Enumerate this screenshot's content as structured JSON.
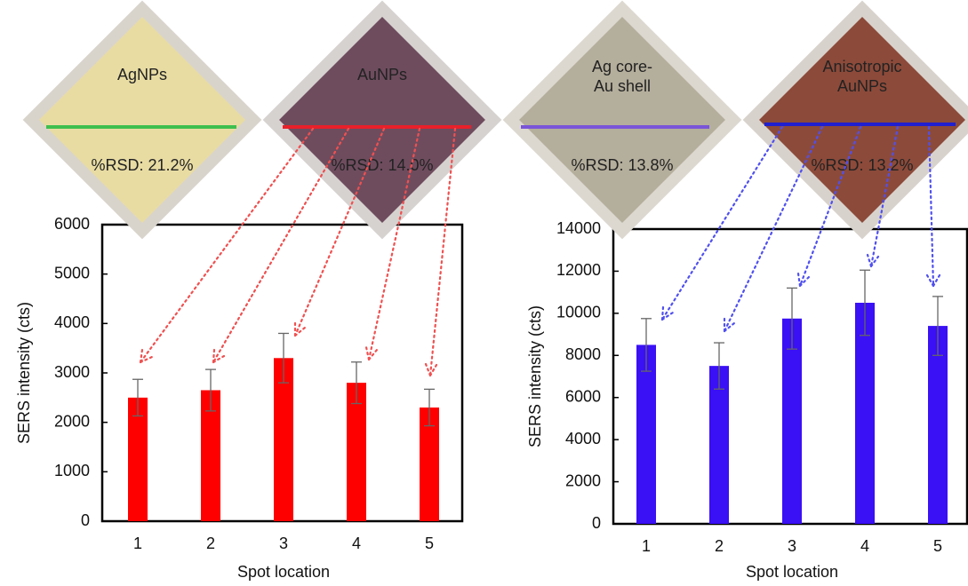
{
  "substrates": [
    {
      "label": [
        "AgNPs"
      ],
      "rsd": "%RSD: 21.2%"
    },
    {
      "label": [
        "AuNPs"
      ],
      "rsd": "%RSD: 14.0%"
    },
    {
      "label": [
        "Ag core-",
        "Au shell"
      ],
      "rsd": "%RSD: 13.8%"
    },
    {
      "label": [
        "Anisotropic",
        "AuNPs"
      ],
      "rsd": "%RSD: 13.2%"
    }
  ],
  "chart_data": [
    {
      "type": "bar",
      "x_label": "Spot location",
      "y_label": "SERS intensity (cts)",
      "categories": [
        "1",
        "2",
        "3",
        "4",
        "5"
      ],
      "values": [
        2500,
        2650,
        3300,
        2800,
        2300
      ],
      "errors": [
        370,
        420,
        500,
        420,
        370
      ],
      "color": "#ff0000",
      "ylim": [
        0,
        6000
      ],
      "yticks": [
        0,
        1000,
        2000,
        3000,
        4000,
        5000,
        6000
      ]
    },
    {
      "type": "bar",
      "x_label": "Spot location",
      "y_label": "SERS intensity (cts)",
      "categories": [
        "1",
        "2",
        "3",
        "4",
        "5"
      ],
      "values": [
        8500,
        7500,
        9750,
        10500,
        9400
      ],
      "errors": [
        1250,
        1100,
        1450,
        1550,
        1400
      ],
      "color": "#3a10f5",
      "ylim": [
        0,
        14000
      ],
      "yticks": [
        0,
        2000,
        4000,
        6000,
        8000,
        10000,
        12000,
        14000
      ]
    }
  ]
}
